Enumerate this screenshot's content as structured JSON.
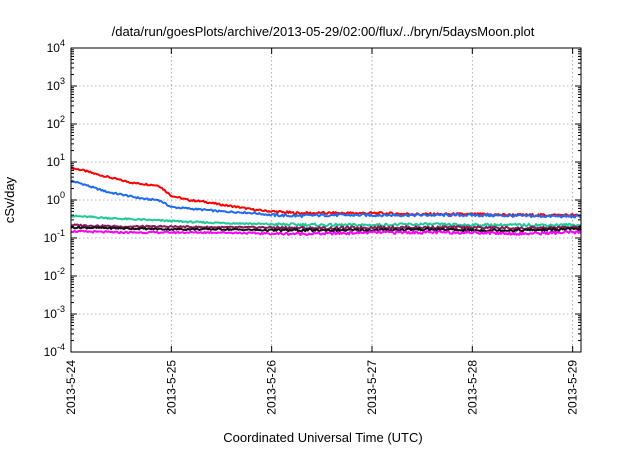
{
  "chart_data": {
    "type": "line",
    "title": "/data/run/goesPlots/archive/2013-05-29/02:00/flux/../bryn/5daysMoon.plot",
    "xlabel": "Coordinated Universal Time (UTC)",
    "ylabel": "cSv/day",
    "yscale": "log",
    "ylim": [
      0.0001,
      10000
    ],
    "xlim": [
      "2013-05-24T00:00",
      "2013-05-29T02:00"
    ],
    "x_ticks": [
      "2013-5-24",
      "2013-5-25",
      "2013-5-26",
      "2013-5-27",
      "2013-5-28",
      "2013-5-29"
    ],
    "y_ticks": [
      {
        "base": "10",
        "exp": "-4"
      },
      {
        "base": "10",
        "exp": "-3"
      },
      {
        "base": "10",
        "exp": "-2"
      },
      {
        "base": "10",
        "exp": "-1"
      },
      {
        "base": "10",
        "exp": "0"
      },
      {
        "base": "10",
        "exp": "1"
      },
      {
        "base": "10",
        "exp": "2"
      },
      {
        "base": "10",
        "exp": "3"
      },
      {
        "base": "10",
        "exp": "4"
      }
    ],
    "grid": true,
    "legend": "none",
    "series": [
      {
        "color": "#ff0000",
        "points": [
          [
            "2013-05-24T00:00",
            7.0
          ],
          [
            "2013-05-24T03:00",
            6.0
          ],
          [
            "2013-05-24T06:00",
            4.8
          ],
          [
            "2013-05-24T09:00",
            4.0
          ],
          [
            "2013-05-24T12:00",
            3.3
          ],
          [
            "2013-05-24T15:00",
            2.8
          ],
          [
            "2013-05-24T18:00",
            2.6
          ],
          [
            "2013-05-24T21:00",
            2.4
          ],
          [
            "2013-05-25T00:00",
            1.3
          ],
          [
            "2013-05-25T04:00",
            1.0
          ],
          [
            "2013-05-25T08:00",
            0.9
          ],
          [
            "2013-05-25T12:00",
            0.75
          ],
          [
            "2013-05-25T16:00",
            0.65
          ],
          [
            "2013-05-25T20:00",
            0.55
          ],
          [
            "2013-05-26T00:00",
            0.5
          ],
          [
            "2013-05-26T06:00",
            0.45
          ],
          [
            "2013-05-26T12:00",
            0.45
          ],
          [
            "2013-05-26T18:00",
            0.45
          ],
          [
            "2013-05-27T00:00",
            0.45
          ],
          [
            "2013-05-27T12:00",
            0.42
          ],
          [
            "2013-05-28T00:00",
            0.42
          ],
          [
            "2013-05-28T12:00",
            0.4
          ],
          [
            "2013-05-29T00:00",
            0.4
          ],
          [
            "2013-05-29T02:00",
            0.38
          ]
        ]
      },
      {
        "color": "#1f6cf2",
        "points": [
          [
            "2013-05-24T00:00",
            3.2
          ],
          [
            "2013-05-24T03:00",
            2.6
          ],
          [
            "2013-05-24T06:00",
            2.0
          ],
          [
            "2013-05-24T09:00",
            1.6
          ],
          [
            "2013-05-24T12:00",
            1.4
          ],
          [
            "2013-05-24T15:00",
            1.2
          ],
          [
            "2013-05-24T18:00",
            1.05
          ],
          [
            "2013-05-24T21:00",
            1.0
          ],
          [
            "2013-05-25T00:00",
            0.65
          ],
          [
            "2013-05-25T04:00",
            0.6
          ],
          [
            "2013-05-25T08:00",
            0.55
          ],
          [
            "2013-05-25T12:00",
            0.5
          ],
          [
            "2013-05-25T16:00",
            0.48
          ],
          [
            "2013-05-25T20:00",
            0.45
          ],
          [
            "2013-05-26T00:00",
            0.4
          ],
          [
            "2013-05-26T06:00",
            0.38
          ],
          [
            "2013-05-26T12:00",
            0.4
          ],
          [
            "2013-05-26T18:00",
            0.4
          ],
          [
            "2013-05-27T00:00",
            0.4
          ],
          [
            "2013-05-27T12:00",
            0.4
          ],
          [
            "2013-05-28T00:00",
            0.4
          ],
          [
            "2013-05-28T12:00",
            0.38
          ],
          [
            "2013-05-29T00:00",
            0.37
          ],
          [
            "2013-05-29T02:00",
            0.36
          ]
        ]
      },
      {
        "color": "#20c997",
        "points": [
          [
            "2013-05-24T00:00",
            0.38
          ],
          [
            "2013-05-24T06:00",
            0.35
          ],
          [
            "2013-05-24T12:00",
            0.32
          ],
          [
            "2013-05-24T18:00",
            0.3
          ],
          [
            "2013-05-25T00:00",
            0.28
          ],
          [
            "2013-05-25T06:00",
            0.26
          ],
          [
            "2013-05-25T12:00",
            0.25
          ],
          [
            "2013-05-25T18:00",
            0.24
          ],
          [
            "2013-05-26T00:00",
            0.23
          ],
          [
            "2013-05-26T12:00",
            0.22
          ],
          [
            "2013-05-27T00:00",
            0.22
          ],
          [
            "2013-05-27T12:00",
            0.23
          ],
          [
            "2013-05-28T00:00",
            0.22
          ],
          [
            "2013-05-28T12:00",
            0.22
          ],
          [
            "2013-05-29T00:00",
            0.22
          ],
          [
            "2013-05-29T02:00",
            0.22
          ]
        ]
      },
      {
        "color": "#8b1a5c",
        "points": [
          [
            "2013-05-24T00:00",
            0.22
          ],
          [
            "2013-05-24T12:00",
            0.2
          ],
          [
            "2013-05-25T00:00",
            0.2
          ],
          [
            "2013-05-25T12:00",
            0.19
          ],
          [
            "2013-05-26T00:00",
            0.19
          ],
          [
            "2013-05-26T12:00",
            0.18
          ],
          [
            "2013-05-27T00:00",
            0.19
          ],
          [
            "2013-05-27T12:00",
            0.19
          ],
          [
            "2013-05-28T00:00",
            0.19
          ],
          [
            "2013-05-28T12:00",
            0.18
          ],
          [
            "2013-05-29T00:00",
            0.19
          ],
          [
            "2013-05-29T02:00",
            0.19
          ]
        ]
      },
      {
        "color": "#111111",
        "points": [
          [
            "2013-05-24T00:00",
            0.19
          ],
          [
            "2013-05-24T12:00",
            0.18
          ],
          [
            "2013-05-25T00:00",
            0.17
          ],
          [
            "2013-05-25T12:00",
            0.17
          ],
          [
            "2013-05-26T00:00",
            0.16
          ],
          [
            "2013-05-26T12:00",
            0.16
          ],
          [
            "2013-05-27T00:00",
            0.16
          ],
          [
            "2013-05-27T12:00",
            0.17
          ],
          [
            "2013-05-28T00:00",
            0.16
          ],
          [
            "2013-05-28T12:00",
            0.16
          ],
          [
            "2013-05-29T00:00",
            0.17
          ],
          [
            "2013-05-29T02:00",
            0.17
          ]
        ]
      },
      {
        "color": "#ff00ff",
        "points": [
          [
            "2013-05-24T00:00",
            0.15
          ],
          [
            "2013-05-24T12:00",
            0.14
          ],
          [
            "2013-05-25T00:00",
            0.14
          ],
          [
            "2013-05-25T12:00",
            0.14
          ],
          [
            "2013-05-26T00:00",
            0.13
          ],
          [
            "2013-05-26T12:00",
            0.13
          ],
          [
            "2013-05-27T00:00",
            0.14
          ],
          [
            "2013-05-27T12:00",
            0.14
          ],
          [
            "2013-05-28T00:00",
            0.14
          ],
          [
            "2013-05-28T12:00",
            0.13
          ],
          [
            "2013-05-29T00:00",
            0.14
          ],
          [
            "2013-05-29T02:00",
            0.14
          ]
        ]
      }
    ]
  }
}
